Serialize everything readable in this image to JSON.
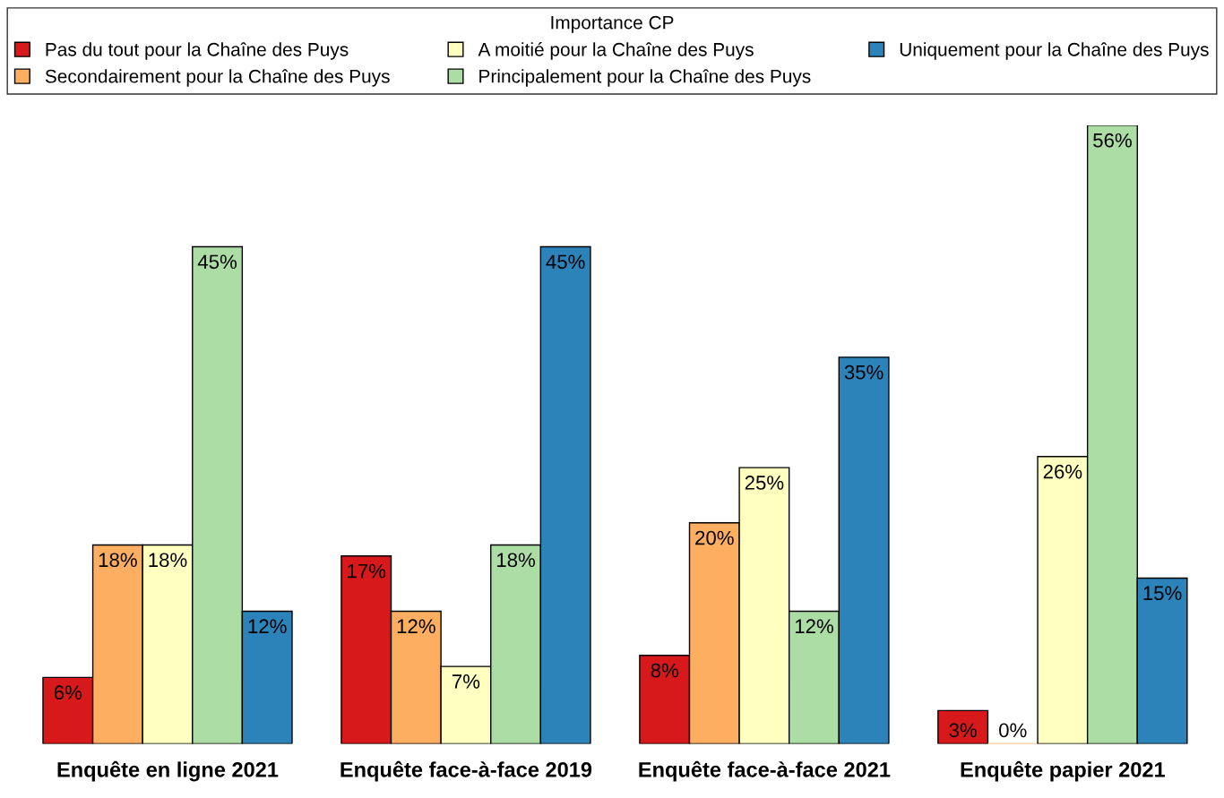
{
  "chart_data": {
    "type": "bar",
    "legend_title": "Importance CP",
    "categories": [
      "Enquête en ligne 2021",
      "Enquête face-à-face 2019",
      "Enquête face-à-face 2021",
      "Enquête papier 2021"
    ],
    "series": [
      {
        "name": "Pas du tout pour la Chaîne des Puys",
        "color": "#d7191c",
        "values": [
          6,
          17,
          8,
          3
        ],
        "value_labels": [
          "6%",
          "17%",
          "8%",
          "3%"
        ]
      },
      {
        "name": "Secondairement pour la Chaîne des Puys",
        "color": "#fdae61",
        "values": [
          18,
          12,
          20,
          0
        ],
        "value_labels": [
          "18%",
          "12%",
          "20%",
          "0%"
        ]
      },
      {
        "name": "A moitié pour la Chaîne des Puys",
        "color": "#ffffbf",
        "values": [
          18,
          7,
          25,
          26
        ],
        "value_labels": [
          "18%",
          "7%",
          "25%",
          "26%"
        ]
      },
      {
        "name": "Principalement pour la Chaîne des Puys",
        "color": "#abdda4",
        "values": [
          45,
          18,
          12,
          56
        ],
        "value_labels": [
          "45%",
          "18%",
          "12%",
          "56%"
        ]
      },
      {
        "name": "Uniquement pour la Chaîne des Puys",
        "color": "#2b83ba",
        "values": [
          12,
          45,
          35,
          15
        ],
        "value_labels": [
          "12%",
          "45%",
          "35%",
          "15%"
        ]
      }
    ],
    "legend": "top",
    "grid": false
  }
}
